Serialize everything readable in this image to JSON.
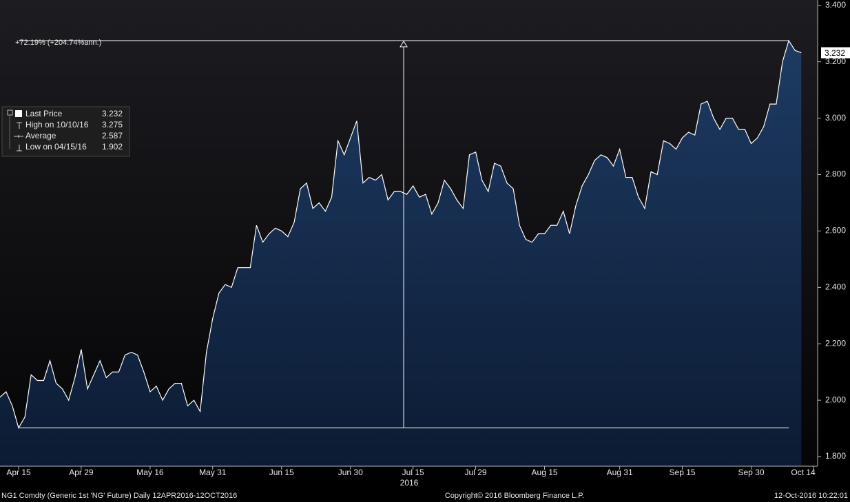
{
  "chart_data": {
    "type": "area",
    "annotation": "+72.19% (+204.74%ann.)",
    "year_label": "2016",
    "categories": [
      null,
      null,
      null,
      "Apr 15",
      null,
      null,
      null,
      null,
      null,
      null,
      null,
      null,
      null,
      "Apr 29",
      null,
      null,
      null,
      null,
      null,
      null,
      null,
      null,
      null,
      null,
      "May 16",
      null,
      null,
      null,
      null,
      null,
      null,
      null,
      null,
      null,
      "May 31",
      null,
      null,
      null,
      null,
      null,
      null,
      null,
      null,
      null,
      null,
      "Jun 15",
      null,
      null,
      null,
      null,
      null,
      null,
      null,
      null,
      null,
      null,
      "Jun 30",
      null,
      null,
      null,
      null,
      null,
      null,
      null,
      null,
      null,
      "Jul 15",
      null,
      null,
      null,
      null,
      null,
      null,
      null,
      null,
      null,
      "Jul 29",
      null,
      null,
      null,
      null,
      null,
      null,
      null,
      null,
      null,
      null,
      "Aug 15",
      null,
      null,
      null,
      null,
      null,
      null,
      null,
      null,
      null,
      null,
      null,
      "Aug 31",
      null,
      null,
      null,
      null,
      null,
      null,
      null,
      null,
      null,
      "Sep 15",
      null,
      null,
      null,
      null,
      null,
      null,
      null,
      null,
      null,
      null,
      "Sep 30",
      null,
      null,
      null,
      null,
      null,
      null,
      null,
      null,
      null,
      "Oct 14"
    ],
    "series": [
      {
        "name": "Last Price",
        "color": "#ffffff",
        "fill": "#17335a",
        "values": [
          2.01,
          2.03,
          1.98,
          1.902,
          1.94,
          2.09,
          2.07,
          2.07,
          2.14,
          2.06,
          2.04,
          2.0,
          2.08,
          2.18,
          2.04,
          2.09,
          2.14,
          2.08,
          2.1,
          2.1,
          2.16,
          2.17,
          2.16,
          2.1,
          2.03,
          2.05,
          2.0,
          2.04,
          2.06,
          2.06,
          1.98,
          2.0,
          1.96,
          2.17,
          2.29,
          2.38,
          2.41,
          2.4,
          2.47,
          2.47,
          2.47,
          2.62,
          2.56,
          2.59,
          2.61,
          2.6,
          2.58,
          2.63,
          2.75,
          2.77,
          2.68,
          2.7,
          2.67,
          2.72,
          2.92,
          2.87,
          2.93,
          2.99,
          2.77,
          2.79,
          2.78,
          2.8,
          2.71,
          2.74,
          2.74,
          2.73,
          2.76,
          2.72,
          2.73,
          2.66,
          2.7,
          2.78,
          2.75,
          2.71,
          2.68,
          2.87,
          2.88,
          2.78,
          2.74,
          2.84,
          2.83,
          2.77,
          2.75,
          2.62,
          2.57,
          2.56,
          2.59,
          2.59,
          2.62,
          2.62,
          2.67,
          2.59,
          2.69,
          2.76,
          2.8,
          2.85,
          2.87,
          2.86,
          2.83,
          2.89,
          2.79,
          2.79,
          2.72,
          2.68,
          2.81,
          2.8,
          2.92,
          2.91,
          2.89,
          2.93,
          2.95,
          2.94,
          3.05,
          3.06,
          3.0,
          2.96,
          3.0,
          3.0,
          2.96,
          2.96,
          2.91,
          2.93,
          2.97,
          3.05,
          3.05,
          3.2,
          3.275,
          3.24,
          3.232,
          null,
          null
        ]
      }
    ],
    "last_price": 3.232,
    "stats": [
      {
        "label": "High on 10/10/16",
        "value": 3.275
      },
      {
        "label": "Average",
        "value": 2.587
      },
      {
        "label": "Low on 04/15/16",
        "value": 1.902
      }
    ],
    "ylim": [
      1.766,
      3.419
    ],
    "yticks": [
      {
        "value": 1.8,
        "label": "1.800"
      },
      {
        "value": 2.0,
        "label": "2.000"
      },
      {
        "value": 2.2,
        "label": "2.200"
      },
      {
        "value": 2.4,
        "label": "2.400"
      },
      {
        "value": 2.6,
        "label": "2.600"
      },
      {
        "value": 2.8,
        "label": "2.800"
      },
      {
        "value": 3.0,
        "label": "3.000"
      },
      {
        "value": 3.2,
        "label": "3.200"
      },
      {
        "value": 3.4,
        "label": "3.400"
      }
    ],
    "footer": {
      "left": "NG1 Comdty (Generic 1st 'NG' Future)  Daily 12APR2016-12OCT2016",
      "center": "Copyright© 2016 Bloomberg Finance L.P.",
      "right": "12-Oct-2016 10:22:01"
    }
  }
}
